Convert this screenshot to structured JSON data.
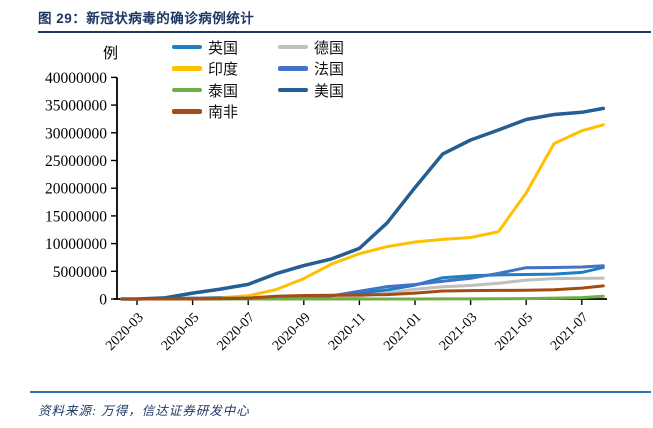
{
  "title": {
    "text": "图 29：新冠状病毒的确诊病例统计"
  },
  "footer": {
    "source_text": "资料来源: 万得，信达证券研发中心"
  },
  "colors": {
    "title_navy": "#1F3864",
    "footer_rule_blue": "#2E74B5",
    "axis_black": "#000000"
  },
  "chart_data": {
    "type": "line",
    "title": "新冠状病毒的确诊病例统计",
    "unit_label": "例",
    "ylabel": "例",
    "xlabel": "",
    "ylim": [
      0,
      40000000
    ],
    "grid": false,
    "legend_position": "top",
    "y_ticks": [
      0,
      5000000,
      10000000,
      15000000,
      20000000,
      25000000,
      30000000,
      35000000,
      40000000
    ],
    "x_ticks": [
      "2020-03",
      "2020-05",
      "2020-07",
      "2020-09",
      "2020-11",
      "2021-01",
      "2021-03",
      "2021-05",
      "2021-07"
    ],
    "x": [
      "2020-02-15",
      "2020-03-01",
      "2020-04-01",
      "2020-05-01",
      "2020-06-01",
      "2020-07-01",
      "2020-08-01",
      "2020-09-01",
      "2020-10-01",
      "2020-11-01",
      "2020-12-01",
      "2021-01-01",
      "2021-02-01",
      "2021-03-01",
      "2021-04-01",
      "2021-05-01",
      "2021-06-01",
      "2021-07-01",
      "2021-07-25"
    ],
    "series": [
      {
        "id": "uk",
        "name": "英国",
        "color": "#1E7FC4",
        "width": 3,
        "values": [
          0,
          0,
          30000,
          170000,
          270000,
          283000,
          303000,
          335000,
          460000,
          1030000,
          1630000,
          2500000,
          3840000,
          4180000,
          4350000,
          4420000,
          4490000,
          4800000,
          5700000
        ]
      },
      {
        "id": "germany",
        "name": "德国",
        "color": "#BFBFBF",
        "width": 3,
        "values": [
          0,
          0,
          72000,
          160000,
          181000,
          194000,
          209000,
          244000,
          292000,
          532000,
          1070000,
          1760000,
          2220000,
          2440000,
          2840000,
          3410000,
          3680000,
          3720000,
          3770000
        ]
      },
      {
        "id": "india",
        "name": "印度",
        "color": "#FFC000",
        "width": 3,
        "values": [
          0,
          0,
          1000,
          33000,
          190000,
          570000,
          1700000,
          3690000,
          6310000,
          8180000,
          9460000,
          10280000,
          10760000,
          11100000,
          12150000,
          19160000,
          28050000,
          30360000,
          31440000
        ]
      },
      {
        "id": "france",
        "name": "法国",
        "color": "#4472C4",
        "width": 3,
        "values": [
          0,
          0,
          50000,
          128000,
          151000,
          163000,
          187000,
          280000,
          563000,
          1410000,
          2230000,
          2620000,
          3220000,
          3740000,
          4640000,
          5650000,
          5680000,
          5770000,
          6000000
        ]
      },
      {
        "id": "thailand",
        "name": "泰国",
        "color": "#70AD47",
        "width": 3,
        "values": [
          0,
          0,
          1700,
          2900,
          3100,
          3200,
          3300,
          3400,
          3600,
          3800,
          4000,
          6900,
          18000,
          26000,
          29000,
          67000,
          160000,
          260000,
          500000
        ]
      },
      {
        "id": "us",
        "name": "美国",
        "color": "#255E91",
        "width": 3.5,
        "values": [
          0,
          0,
          190000,
          1070000,
          1790000,
          2640000,
          4560000,
          6030000,
          7230000,
          9130000,
          13750000,
          20100000,
          26200000,
          28700000,
          30500000,
          32400000,
          33300000,
          33700000,
          34400000
        ]
      },
      {
        "id": "south-africa",
        "name": "南非",
        "color": "#A34D12",
        "width": 3,
        "values": [
          0,
          0,
          1400,
          5600,
          32000,
          151000,
          493000,
          628000,
          674000,
          725000,
          790000,
          1060000,
          1450000,
          1510000,
          1550000,
          1580000,
          1660000,
          1970000,
          2370000
        ]
      }
    ]
  }
}
